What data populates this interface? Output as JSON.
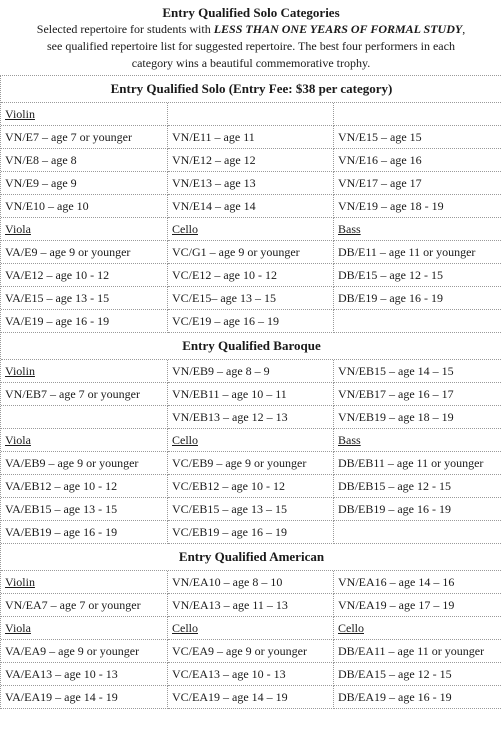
{
  "intro": {
    "title": "Entry Qualified Solo Categories",
    "line1_a": "Selected repertoire for students with ",
    "line1_em": "LESS THAN ONE YEARS OF FORMAL STUDY",
    "line1_b": ",",
    "line2": "see qualified repertoire list for suggested repertoire. The best four performers in each",
    "line3": "category wins a beautiful commemorative trophy."
  },
  "sections": {
    "solo": {
      "title": "Entry Qualified Solo (Entry Fee: $38 per category)",
      "rows": [
        [
          "Violin",
          "",
          ""
        ],
        [
          "VN/E7 – age 7 or younger",
          "VN/E11 – age 11",
          "VN/E15 – age 15"
        ],
        [
          "VN/E8 – age 8",
          "VN/E12 – age 12",
          "VN/E16 – age 16"
        ],
        [
          "VN/E9 – age 9",
          "VN/E13 – age 13",
          "VN/E17 – age 17"
        ],
        [
          "VN/E10 – age 10",
          "VN/E14 – age 14",
          "VN/E19 – age 18 - 19"
        ],
        [
          "Viola",
          "Cello",
          "Bass"
        ],
        [
          "VA/E9 – age 9 or younger",
          "VC/G1 – age 9 or younger",
          "DB/E11 – age 11 or younger"
        ],
        [
          "VA/E12 – age 10 - 12",
          "VC/E12 – age 10 - 12",
          "DB/E15 – age 12 - 15"
        ],
        [
          "VA/E15 – age 13 - 15",
          "VC/E15– age 13 – 15",
          "DB/E19 – age 16 - 19"
        ],
        [
          "VA/E19 – age 16 - 19",
          "VC/E19 – age 16 – 19",
          ""
        ]
      ]
    },
    "baroque": {
      "title": "Entry Qualified Baroque",
      "rows": [
        [
          "Violin",
          "VN/EB9 – age 8 – 9",
          "VN/EB15 – age 14 – 15"
        ],
        [
          "VN/EB7 – age 7 or younger",
          "VN/EB11 – age 10 – 11",
          "VN/EB17 – age 16 – 17"
        ],
        [
          "",
          "VN/EB13 – age 12 – 13",
          "VN/EB19 – age 18 – 19"
        ],
        [
          "Viola",
          "Cello",
          "Bass"
        ],
        [
          "VA/EB9 – age 9 or younger",
          "VC/EB9 – age 9 or younger",
          "DB/EB11 – age 11 or younger"
        ],
        [
          "VA/EB12 – age 10 - 12",
          "VC/EB12 – age 10 - 12",
          "DB/EB15 – age 12 - 15"
        ],
        [
          "VA/EB15 – age 13 - 15",
          "VC/EB15 – age 13 – 15",
          "DB/EB19 – age 16 - 19"
        ],
        [
          "VA/EB19 – age 16 - 19",
          "VC/EB19 – age 16 – 19",
          ""
        ]
      ]
    },
    "american": {
      "title": "Entry Qualified American",
      "rows": [
        [
          "Violin",
          "VN/EA10 – age 8 – 10",
          "VN/EA16 – age 14 – 16"
        ],
        [
          "VN/EA7 – age 7 or younger",
          "VN/EA13 – age 11 – 13",
          "VN/EA19 – age 17 – 19"
        ],
        [
          "Viola",
          "Cello",
          "Cello"
        ],
        [
          "VA/EA9 – age 9 or younger",
          "VC/EA9 – age 9 or younger",
          "DB/EA11 – age 11 or younger"
        ],
        [
          "VA/EA13 – age 10 - 13",
          "VC/EA13 – age 10 - 13",
          "DB/EA15 – age 12 - 15"
        ],
        [
          "VA/EA19 – age 14 - 19",
          "VC/EA19 – age 14 – 19",
          "DB/EA19 – age 16 - 19"
        ]
      ]
    }
  }
}
